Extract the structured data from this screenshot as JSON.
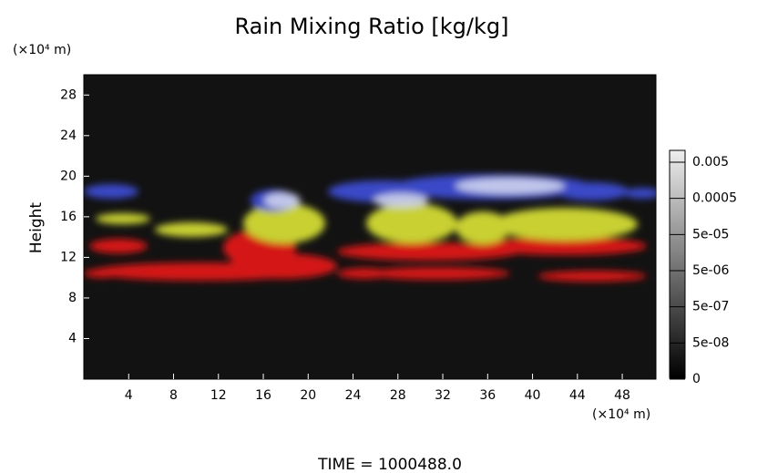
{
  "chart_data": {
    "type": "heatmap",
    "title": "Rain Mixing Ratio [kg/kg]",
    "ylabel": "Height",
    "y_unit_label": "(×10⁴ m)",
    "x_unit_label": "(×10⁴ m)",
    "footer": "TIME = 1000488.0",
    "xlim": [
      0,
      51
    ],
    "xticks": [
      4,
      8,
      12,
      16,
      20,
      24,
      28,
      32,
      36,
      40,
      44,
      48
    ],
    "ylim": [
      0,
      30
    ],
    "yticks": [
      4,
      8,
      12,
      16,
      20,
      24,
      28
    ],
    "colorbar_ticks": [
      {
        "value": 0.005,
        "label": "0.005"
      },
      {
        "value": 0.0005,
        "label": "0.0005"
      },
      {
        "value": 5e-05,
        "label": "5e-05"
      },
      {
        "value": 5e-06,
        "label": "5e-06"
      },
      {
        "value": 5e-07,
        "label": "5e-07"
      },
      {
        "value": 5e-08,
        "label": "5e-08"
      },
      {
        "value": 0,
        "label": "0"
      }
    ]
  }
}
